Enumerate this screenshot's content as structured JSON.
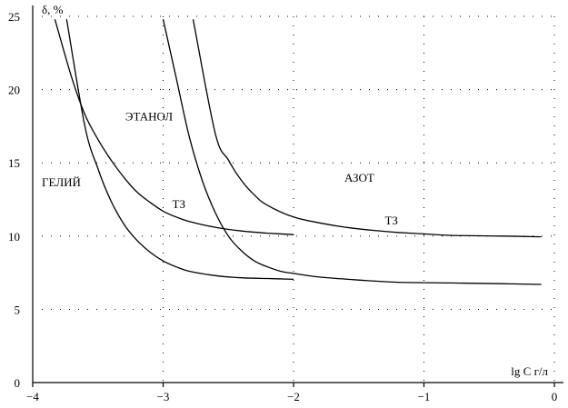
{
  "chart_data": {
    "type": "line",
    "title": "",
    "xlabel": "lg C г/л",
    "ylabel": "δ, %",
    "xlim": [
      -4,
      0
    ],
    "ylim": [
      0,
      25
    ],
    "xticks": [
      -4,
      -3,
      -2,
      -1,
      0
    ],
    "xtick_labels": [
      "−4",
      "−3",
      "−2",
      "−1",
      "0"
    ],
    "yticks": [
      0,
      5,
      10,
      15,
      20,
      25
    ],
    "ytick_labels": [
      "0",
      "5",
      "10",
      "15",
      "20",
      "25"
    ],
    "grid": "dotted",
    "series": [
      {
        "x": [
          -3.74,
          -3.6,
          -3.5,
          -3.4,
          -3.3,
          -3.2,
          -3.1,
          -3.0,
          -2.9,
          -2.8,
          -2.6,
          -2.4,
          -2.2,
          -2.0
        ],
        "y": [
          24.8,
          17.5,
          14.6,
          12.4,
          10.8,
          9.7,
          8.9,
          8.3,
          7.9,
          7.6,
          7.3,
          7.15,
          7.1,
          7.05
        ]
      },
      {
        "x": [
          -3.83,
          -3.7,
          -3.6,
          -3.5,
          -3.4,
          -3.3,
          -3.2,
          -3.1,
          -3.0,
          -2.9,
          -2.8,
          -2.6,
          -2.4,
          -2.2,
          -2.0
        ],
        "y": [
          24.8,
          20.8,
          18.3,
          16.6,
          15.2,
          14.0,
          13.0,
          12.3,
          11.7,
          11.3,
          11.0,
          10.6,
          10.35,
          10.2,
          10.1
        ]
      },
      {
        "x": [
          -3.0,
          -2.9,
          -2.8,
          -2.7,
          -2.6,
          -2.5,
          -2.4,
          -2.3,
          -2.2,
          -2.1,
          -2.0,
          -1.8,
          -1.5,
          -1.2,
          -0.8,
          -0.4,
          -0.1
        ],
        "y": [
          24.8,
          20.8,
          16.8,
          13.8,
          11.6,
          10.0,
          9.0,
          8.3,
          7.9,
          7.6,
          7.45,
          7.2,
          7.0,
          6.85,
          6.8,
          6.75,
          6.7
        ]
      },
      {
        "x": [
          -2.77,
          -2.6,
          -2.5,
          -2.4,
          -2.3,
          -2.2,
          -2.0,
          -1.8,
          -1.6,
          -1.4,
          -1.2,
          -1.0,
          -0.8,
          -0.4,
          -0.1
        ],
        "y": [
          24.8,
          17.0,
          15.2,
          13.8,
          12.8,
          12.1,
          11.3,
          10.9,
          10.6,
          10.4,
          10.25,
          10.15,
          10.05,
          10.0,
          9.95
        ]
      }
    ],
    "annotations": [
      {
        "text": "ГЕЛИЙ",
        "x": -3.93,
        "y": 13.4
      },
      {
        "text": "ЭТАНОЛ",
        "x": -3.29,
        "y": 17.9
      },
      {
        "text": "ТЗ",
        "x": -2.93,
        "y": 11.9
      },
      {
        "text": "АЗОТ",
        "x": -1.61,
        "y": 13.7
      },
      {
        "text": "ТЗ",
        "x": -1.3,
        "y": 10.8
      }
    ]
  }
}
